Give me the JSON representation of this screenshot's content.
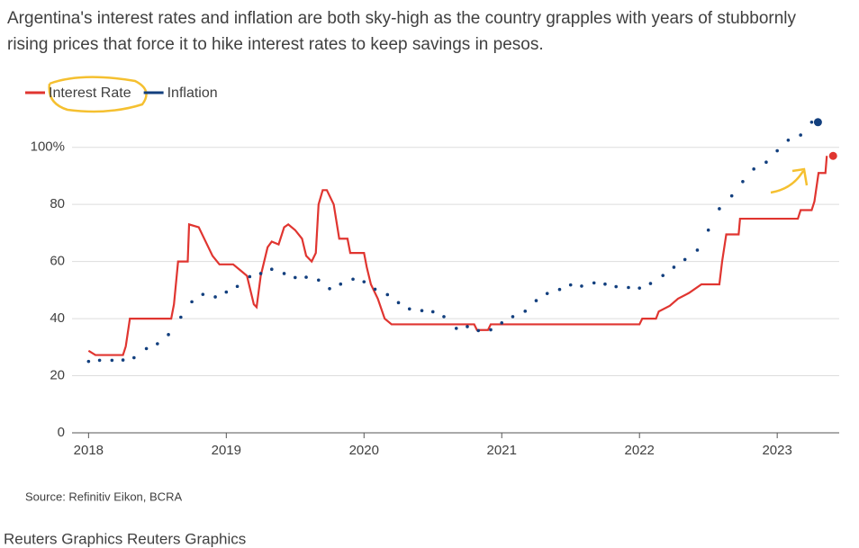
{
  "chart_data": {
    "type": "line",
    "subtitle": "Argentina's interest rates and inflation are both sky-high as the country grapples with years of stubbornly rising prices that force it to hike interest rates to keep savings in pesos.",
    "source": "Source: Refinitiv Eikon, BCRA",
    "footer": "Reuters Graphics Reuters Graphics",
    "legend": "top-left",
    "grid": true,
    "xlim": [
      2017.88,
      2023.45
    ],
    "xticks": [
      2018,
      2019,
      2020,
      2021,
      2022,
      2023
    ],
    "ylim": [
      0,
      110
    ],
    "yticks": [
      0,
      20,
      40,
      60,
      80,
      {
        "value": 100,
        "label": "100%"
      }
    ],
    "series": [
      {
        "name": "Interest Rate",
        "color": "#e03530",
        "style": "line",
        "x": [
          2018.0,
          2018.05,
          2018.25,
          2018.27,
          2018.3,
          2018.6,
          2018.62,
          2018.65,
          2018.72,
          2018.73,
          2018.8,
          2018.85,
          2018.9,
          2018.95,
          2019.05,
          2019.1,
          2019.15,
          2019.2,
          2019.22,
          2019.25,
          2019.3,
          2019.33,
          2019.38,
          2019.42,
          2019.45,
          2019.5,
          2019.55,
          2019.58,
          2019.62,
          2019.65,
          2019.67,
          2019.7,
          2019.73,
          2019.78,
          2019.82,
          2019.88,
          2019.9,
          2020.0,
          2020.02,
          2020.05,
          2020.1,
          2020.15,
          2020.2,
          2020.8,
          2020.82,
          2020.9,
          2020.92,
          2022.0,
          2022.02,
          2022.12,
          2022.14,
          2022.22,
          2022.28,
          2022.36,
          2022.45,
          2022.58,
          2022.6,
          2022.63,
          2022.72,
          2022.73,
          2023.15,
          2023.17,
          2023.25,
          2023.27,
          2023.3,
          2023.35,
          2023.36
        ],
        "values": [
          28.75,
          27.25,
          27.25,
          30.25,
          40,
          40,
          45,
          60,
          60,
          73,
          72,
          67,
          62,
          59,
          59,
          57,
          55,
          45,
          44,
          55,
          65,
          67,
          66,
          72,
          73,
          71,
          68,
          62,
          60,
          63,
          80,
          85,
          85,
          80,
          68,
          68,
          63,
          63,
          58,
          52,
          47,
          40,
          38,
          38,
          36,
          36,
          38,
          38,
          40,
          40,
          42.5,
          44.5,
          47,
          49,
          52,
          52,
          60,
          69.5,
          69.5,
          75,
          75,
          78,
          78,
          81,
          91,
          91,
          97
        ]
      },
      {
        "name": "Inflation",
        "color": "#123f7e",
        "style": "dots",
        "x": [
          2018.0,
          2018.08,
          2018.17,
          2018.25,
          2018.33,
          2018.42,
          2018.5,
          2018.58,
          2018.67,
          2018.75,
          2018.83,
          2018.92,
          2019.0,
          2019.08,
          2019.17,
          2019.25,
          2019.33,
          2019.42,
          2019.5,
          2019.58,
          2019.67,
          2019.75,
          2019.83,
          2019.92,
          2020.0,
          2020.08,
          2020.17,
          2020.25,
          2020.33,
          2020.42,
          2020.5,
          2020.58,
          2020.67,
          2020.75,
          2020.83,
          2020.92,
          2021.0,
          2021.08,
          2021.17,
          2021.25,
          2021.33,
          2021.42,
          2021.5,
          2021.58,
          2021.67,
          2021.75,
          2021.83,
          2021.92,
          2022.0,
          2022.08,
          2022.17,
          2022.25,
          2022.33,
          2022.42,
          2022.5,
          2022.58,
          2022.67,
          2022.75,
          2022.83,
          2022.92,
          2023.0,
          2023.08,
          2023.17,
          2023.25
        ],
        "values": [
          25,
          25.4,
          25.4,
          25.5,
          26.3,
          29.5,
          31.2,
          34.4,
          40.5,
          45.9,
          48.5,
          47.6,
          49.3,
          51.3,
          54.7,
          55.8,
          57.3,
          55.8,
          54.4,
          54.5,
          53.5,
          50.5,
          52.1,
          53.8,
          52.9,
          50.3,
          48.4,
          45.6,
          43.4,
          42.8,
          42.4,
          40.7,
          36.6,
          37.2,
          35.8,
          36.1,
          38.5,
          40.7,
          42.6,
          46.3,
          48.8,
          50.2,
          51.8,
          51.4,
          52.5,
          52.1,
          51.2,
          50.9,
          50.7,
          52.3,
          55.1,
          58.0,
          60.7,
          64.0,
          71.0,
          78.5,
          83.0,
          88.0,
          92.4,
          94.8,
          98.8,
          102.5,
          104.3,
          108.8
        ]
      }
    ]
  }
}
